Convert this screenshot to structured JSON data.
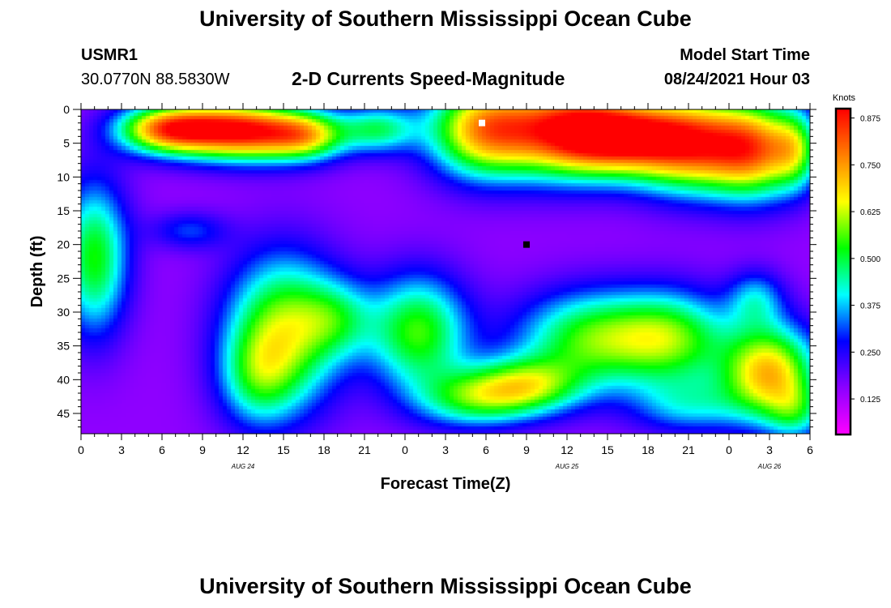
{
  "header": {
    "title_top": "University of Southern Mississippi Ocean Cube",
    "title_bottom": "University of Southern Mississippi Ocean Cube",
    "station_id": "USMR1",
    "station_coords": "30.0770N  88.5830W",
    "model_start_label": "Model Start Time",
    "model_start_value": "08/24/2021 Hour 03"
  },
  "chart_data": {
    "type": "heatmap",
    "title": "2-D Currents Speed-Magnitude",
    "xlabel": "Forecast Time(Z)",
    "ylabel": "Depth (ft)",
    "x_tick_labels": [
      "0",
      "3",
      "6",
      "9",
      "12",
      "15",
      "18",
      "21",
      "0",
      "3",
      "6",
      "9",
      "12",
      "15",
      "18",
      "21",
      "0",
      "3",
      "6"
    ],
    "x_range_hours_from_start": [
      0,
      54
    ],
    "date_labels": [
      {
        "text": "AUG 24",
        "hour": 12
      },
      {
        "text": "AUG 25",
        "hour": 36
      },
      {
        "text": "AUG 26",
        "hour": 51
      }
    ],
    "y_tick_labels": [
      "0",
      "5",
      "10",
      "15",
      "20",
      "25",
      "30",
      "35",
      "40",
      "45"
    ],
    "ylim": [
      0,
      48
    ],
    "colorbar": {
      "unit": "Knots",
      "tick_labels": [
        "0.875",
        "0.750",
        "0.625",
        "0.500",
        "0.375",
        "0.250",
        "0.125"
      ],
      "range": [
        0.03,
        0.9
      ],
      "colors": [
        "#ff00ff",
        "#8c00ff",
        "#0000ff",
        "#00ffff",
        "#00ff00",
        "#ffff00",
        "#ff8000",
        "#ff0000"
      ]
    },
    "markers": [
      {
        "hour": 29.7,
        "depth": 2,
        "color": "#ffffff"
      },
      {
        "hour": 33,
        "depth": 20,
        "color": "#000000"
      }
    ],
    "speed_blobs": [
      {
        "t": 6,
        "d": 3,
        "st": 2.5,
        "sd": 2.5,
        "a": 0.5
      },
      {
        "t": 10,
        "d": 3,
        "st": 3,
        "sd": 3,
        "a": 0.5
      },
      {
        "t": 14,
        "d": 3.5,
        "st": 3,
        "sd": 3,
        "a": 0.45
      },
      {
        "t": 17,
        "d": 4,
        "st": 2,
        "sd": 2.5,
        "a": 0.3
      },
      {
        "t": 22,
        "d": 3,
        "st": 2,
        "sd": 2.5,
        "a": 0.3
      },
      {
        "t": 30,
        "d": 3,
        "st": 3,
        "sd": 5,
        "a": 0.6
      },
      {
        "t": 36,
        "d": 3,
        "st": 3,
        "sd": 5,
        "a": 0.55
      },
      {
        "t": 40,
        "d": 4,
        "st": 3,
        "sd": 4,
        "a": 0.55
      },
      {
        "t": 45,
        "d": 5,
        "st": 3,
        "sd": 5,
        "a": 0.6
      },
      {
        "t": 50,
        "d": 6,
        "st": 2.5,
        "sd": 5,
        "a": 0.55
      },
      {
        "t": 53,
        "d": 6,
        "st": 1.2,
        "sd": 4,
        "a": 0.25
      },
      {
        "t": 1,
        "d": 22,
        "st": 1.8,
        "sd": 8,
        "a": 0.38
      },
      {
        "t": 8,
        "d": 18,
        "st": 2,
        "sd": 2,
        "a": 0.15
      },
      {
        "t": 15,
        "d": 33,
        "st": 3,
        "sd": 8,
        "a": 0.45
      },
      {
        "t": 13,
        "d": 40,
        "st": 2,
        "sd": 5,
        "a": 0.2
      },
      {
        "t": 19,
        "d": 31,
        "st": 2,
        "sd": 4,
        "a": 0.2
      },
      {
        "t": 25,
        "d": 33,
        "st": 2.6,
        "sd": 6,
        "a": 0.4
      },
      {
        "t": 29,
        "d": 43,
        "st": 3,
        "sd": 3,
        "a": 0.3
      },
      {
        "t": 33,
        "d": 41,
        "st": 3,
        "sd": 3,
        "a": 0.38
      },
      {
        "t": 38,
        "d": 34,
        "st": 4,
        "sd": 5,
        "a": 0.4
      },
      {
        "t": 44,
        "d": 34,
        "st": 3,
        "sd": 5,
        "a": 0.33
      },
      {
        "t": 45,
        "d": 44,
        "st": 3,
        "sd": 3,
        "a": 0.2
      },
      {
        "t": 51,
        "d": 39,
        "st": 2.5,
        "sd": 5,
        "a": 0.55
      },
      {
        "t": 53,
        "d": 45,
        "st": 1.5,
        "sd": 3,
        "a": 0.2
      },
      {
        "t": 50,
        "d": 28,
        "st": 1.5,
        "sd": 3,
        "a": 0.2
      }
    ],
    "base_speed": 0.15
  }
}
